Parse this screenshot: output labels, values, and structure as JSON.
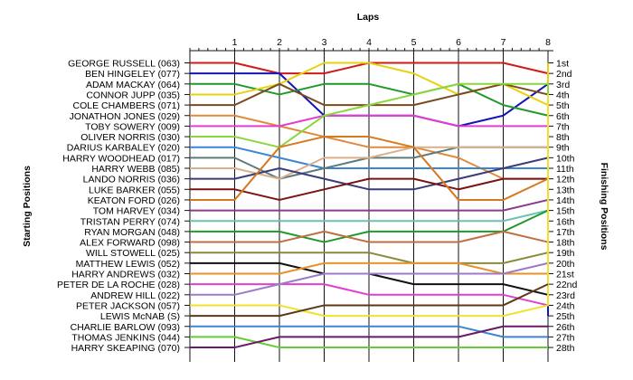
{
  "chart_data": {
    "type": "line",
    "title": "Laps",
    "ylabel_left": "Starting Positions",
    "ylabel_right": "Finishing Positions",
    "laps": [
      1,
      2,
      3,
      4,
      5,
      6,
      7,
      8
    ],
    "positions": [
      "1st",
      "2nd",
      "3rd",
      "4th",
      "5th",
      "6th",
      "7th",
      "8th",
      "9th",
      "10th",
      "11th",
      "12th",
      "13th",
      "14th",
      "15th",
      "16th",
      "17th",
      "18th",
      "19th",
      "20th",
      "21st",
      "22nd",
      "23rd",
      "24th",
      "25th",
      "26th",
      "27th",
      "28th"
    ],
    "series": [
      {
        "name": "GEORGE RUSSELL (063)",
        "color": "#d11a1a",
        "values": [
          1,
          1,
          2,
          2,
          1,
          1,
          1,
          1,
          2
        ]
      },
      {
        "name": "BEN HINGELEY (077)",
        "color": "#1414b8",
        "values": [
          2,
          2,
          2,
          6,
          6,
          6,
          7,
          6,
          3,
          25
        ]
      },
      {
        "name": "ADAM MACKAY (064)",
        "color": "#1f9a2a",
        "values": [
          3,
          3,
          4,
          3,
          3,
          4,
          3,
          5,
          6,
          3
        ]
      },
      {
        "name": "CONNOR JUPP (035)",
        "color": "#e8d20f",
        "values": [
          4,
          4,
          3,
          1,
          1,
          2,
          4,
          3,
          5,
          1
        ]
      },
      {
        "name": "COLE CHAMBERS (071)",
        "color": "#7a4a1e",
        "values": [
          5,
          5,
          3,
          5,
          5,
          5,
          4,
          3,
          4
        ]
      },
      {
        "name": "JONATHON JONES (029)",
        "color": "#e08a3c",
        "values": [
          6,
          6,
          7,
          8,
          9,
          9,
          10,
          12,
          12,
          16
        ]
      },
      {
        "name": "TOBY SOWERY (009)",
        "color": "#e23fd1",
        "values": [
          7,
          7,
          7,
          6,
          6,
          6,
          7,
          7,
          7,
          5
        ]
      },
      {
        "name": "OLIVER NORRIS (030)",
        "color": "#8bd63a",
        "values": [
          8,
          8,
          9,
          6,
          5,
          4,
          3,
          3,
          3,
          17
        ]
      },
      {
        "name": "DARIUS KARBALEY (020)",
        "color": "#3a86d4",
        "values": [
          9,
          9,
          10,
          11,
          11,
          11,
          11,
          11,
          11
        ]
      },
      {
        "name": "HARRY WOODHEAD (017)",
        "color": "#5c7c7c",
        "values": [
          10,
          10,
          12,
          11,
          10,
          10,
          9,
          9,
          9,
          8
        ]
      },
      {
        "name": "HARRY WEBB (085)",
        "color": "#d9b08c",
        "values": [
          11,
          11,
          12,
          10,
          10,
          9,
          9,
          9,
          9
        ]
      },
      {
        "name": "LANDO NORRIS (036)",
        "color": "#3c3c7a",
        "values": [
          12,
          12,
          11,
          12,
          13,
          13,
          12,
          11,
          10,
          9
        ]
      },
      {
        "name": "LUKE BARKER (055)",
        "color": "#7a1414",
        "values": [
          13,
          13,
          14,
          13,
          12,
          12,
          13,
          12,
          12,
          11
        ]
      },
      {
        "name": "KEATON FORD (026)",
        "color": "#d67a20",
        "values": [
          14,
          14,
          9,
          8,
          8,
          9,
          14,
          14,
          12
        ]
      },
      {
        "name": "TOM HARVEY (034)",
        "color": "#8c3c8c",
        "values": [
          15,
          15,
          15,
          15,
          15,
          15,
          15,
          15,
          14
        ]
      },
      {
        "name": "TRISTAN PERRY (074)",
        "color": "#6fc2b2",
        "values": [
          16,
          16,
          16,
          16,
          16,
          16,
          16,
          16,
          15
        ]
      },
      {
        "name": "RYAN MORGAN (048)",
        "color": "#1f9a2a",
        "values": [
          17,
          17,
          17,
          18,
          17,
          17,
          17,
          17,
          15
        ]
      },
      {
        "name": "ALEX FORWARD (098)",
        "color": "#c07040",
        "values": [
          18,
          18,
          18,
          17,
          18,
          18,
          18,
          17,
          18
        ]
      },
      {
        "name": "WILL STOWELL (025)",
        "color": "#8a8a3c",
        "values": [
          19,
          19,
          19,
          19,
          19,
          20,
          20,
          20,
          19
        ]
      },
      {
        "name": "MATTHEW LEWIS (052)",
        "color": "#111111",
        "values": [
          20,
          20,
          20,
          21,
          21,
          22,
          22,
          22,
          23
        ]
      },
      {
        "name": "HARRY ANDREWS (032)",
        "color": "#e8922a",
        "values": [
          21,
          21,
          21,
          20,
          20,
          20,
          20,
          21,
          21
        ]
      },
      {
        "name": "PETER DE LA ROCHE (028)",
        "color": "#e23fd1",
        "values": [
          22,
          22,
          22,
          22,
          23,
          23,
          23,
          23,
          24,
          22
        ]
      },
      {
        "name": "ANDREW HILL (022)",
        "color": "#9b7bc9",
        "values": [
          23,
          23,
          22,
          21,
          21,
          21,
          21,
          21,
          20
        ]
      },
      {
        "name": "PETER JACKSON (057)",
        "color": "#f2e12a",
        "values": [
          24,
          24,
          24,
          25,
          25,
          25,
          25,
          25,
          24,
          4
        ]
      },
      {
        "name": "LEWIS McNAB (S)",
        "color": "#5a3a1a",
        "values": [
          25,
          25,
          25,
          24,
          24,
          24,
          24,
          24,
          22
        ]
      },
      {
        "name": "CHARLIE BARLOW (093)",
        "color": "#3a86d4",
        "values": [
          26,
          26,
          26,
          26,
          26,
          26,
          26,
          27,
          27
        ]
      },
      {
        "name": "THOMAS JENKINS (044)",
        "color": "#66cc33",
        "values": [
          27,
          27,
          28,
          28,
          28,
          28,
          28,
          28,
          28
        ]
      },
      {
        "name": "HARRY SKEAPING (070)",
        "color": "#6a1a6a",
        "values": [
          28,
          28,
          27,
          27,
          27,
          27,
          27,
          26,
          26
        ]
      }
    ]
  }
}
